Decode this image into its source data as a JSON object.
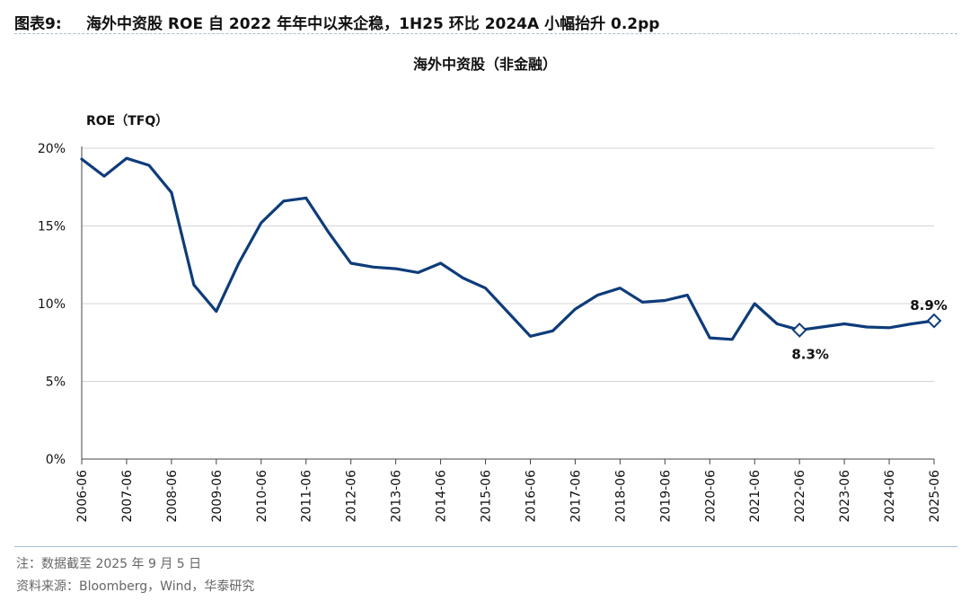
{
  "header": {
    "label": "图表9:",
    "caption": "海外中资股 ROE 自 2022 年年中以来企稳，1H25 环比 2024A 小幅抬升 0.2pp"
  },
  "footer": {
    "note": "注：数据截至 2025 年 9 月 5 日",
    "source": "资料来源：Bloomberg，Wind，华泰研究"
  },
  "chart_data": {
    "type": "line",
    "title": "海外中资股（非金融）",
    "ylabel": "ROE（TFQ）",
    "xlabel": "",
    "ylim": [
      0,
      20
    ],
    "yticks": [
      0,
      5,
      10,
      15,
      20
    ],
    "ytick_labels": [
      "0%",
      "5%",
      "10%",
      "15%",
      "20%"
    ],
    "xtick_labels": [
      "2006-06",
      "2007-06",
      "2008-06",
      "2009-06",
      "2010-06",
      "2011-06",
      "2012-06",
      "2013-06",
      "2014-06",
      "2015-06",
      "2016-06",
      "2017-06",
      "2018-06",
      "2019-06",
      "2020-06",
      "2021-06",
      "2022-06",
      "2023-06",
      "2024-06",
      "2025-06"
    ],
    "grid": true,
    "line_color": "#0e3c7a",
    "x_range": [
      "2006-06",
      "2025-06"
    ],
    "series": [
      {
        "x": [
          "2006-06",
          "2006-12",
          "2007-06",
          "2007-12",
          "2008-06",
          "2008-12",
          "2009-06",
          "2009-12",
          "2010-06",
          "2010-12",
          "2011-06",
          "2011-12",
          "2012-06",
          "2012-12",
          "2013-06",
          "2013-12",
          "2014-06",
          "2014-12",
          "2015-06",
          "2015-12",
          "2016-06",
          "2016-12",
          "2017-06",
          "2017-12",
          "2018-06",
          "2018-12",
          "2019-06",
          "2019-12",
          "2020-06",
          "2020-12",
          "2021-06",
          "2021-12",
          "2022-06",
          "2022-12",
          "2023-06",
          "2023-12",
          "2024-06",
          "2024-12",
          "2025-06"
        ],
        "values": [
          19.3,
          18.2,
          19.35,
          18.9,
          17.15,
          11.2,
          9.5,
          12.6,
          15.2,
          16.6,
          16.8,
          14.6,
          12.6,
          12.35,
          12.25,
          12.0,
          12.6,
          11.65,
          11.0,
          9.45,
          7.9,
          8.25,
          9.65,
          10.55,
          11.0,
          10.1,
          10.2,
          10.55,
          7.8,
          7.7,
          10.0,
          8.7,
          8.3,
          8.5,
          8.7,
          8.5,
          8.45,
          8.7,
          8.9
        ]
      }
    ],
    "annotations": [
      {
        "x": "2022-06",
        "value": 8.3,
        "label": "8.3%",
        "marker": "diamond"
      },
      {
        "x": "2025-06",
        "value": 8.9,
        "label": "8.9%",
        "marker": "diamond"
      }
    ]
  }
}
